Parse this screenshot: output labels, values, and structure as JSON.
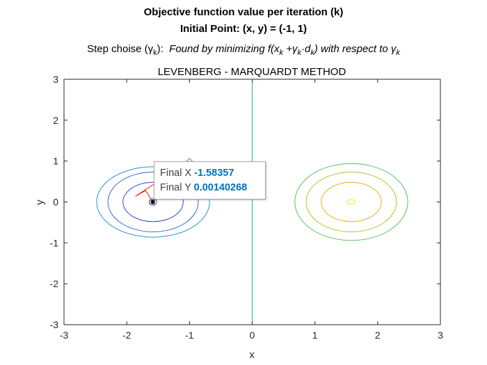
{
  "titles": {
    "line1": "Objective function value per iteration (k)",
    "line2": "Initial Point: (x, y) = (-1, 1)",
    "line3_prefix": "Step choise (",
    "gamma": "γ",
    "sub_k": "k",
    "line3_mid": "):  ",
    "line3_italic_a": "Found by minimizing f(x",
    "line3_italic_b": " +",
    "dot": "·",
    "d": "d",
    "line3_italic_c": ") with respect to "
  },
  "chart_data": {
    "type": "line",
    "title": "LEVENBERG - MARQUARDT METHOD",
    "xlabel": "x",
    "ylabel": "y",
    "xlim": [
      -3,
      3
    ],
    "ylim": [
      -3,
      3
    ],
    "xticks": [
      "-3",
      "-2",
      "-1",
      "0",
      "1",
      "2",
      "3"
    ],
    "yticks": [
      "-3",
      "-2",
      "-1",
      "0",
      "1",
      "2",
      "3"
    ],
    "grid": false,
    "zero_line": {
      "x": 0,
      "color": "#20b2aa"
    },
    "contours": [
      {
        "center": [
          -1.58,
          0
        ],
        "rx": 0.06,
        "ry": 0.06,
        "color": "#3d26a8"
      },
      {
        "center": [
          -1.58,
          0
        ],
        "rx": 0.48,
        "ry": 0.48,
        "color": "#3344d8"
      },
      {
        "center": [
          -1.58,
          0
        ],
        "rx": 0.72,
        "ry": 0.73,
        "color": "#2a6be0"
      },
      {
        "center": [
          -1.58,
          0
        ],
        "rx": 0.9,
        "ry": 0.86,
        "color": "#1e98d8"
      },
      {
        "center": [
          1.58,
          0
        ],
        "rx": 0.06,
        "ry": 0.06,
        "color": "#f9e020"
      },
      {
        "center": [
          1.58,
          0
        ],
        "rx": 0.48,
        "ry": 0.48,
        "color": "#d7b81c"
      },
      {
        "center": [
          1.58,
          0
        ],
        "rx": 0.72,
        "ry": 0.73,
        "color": "#b5c224"
      },
      {
        "center": [
          1.58,
          0
        ],
        "rx": 0.9,
        "ry": 0.94,
        "color": "#5cc05e"
      }
    ],
    "path": {
      "color": "#e8120f",
      "points": [
        [
          -1,
          1
        ],
        [
          -1.86,
          0.14
        ],
        [
          -1.7,
          0.28
        ],
        [
          -1.58357,
          0.00140268
        ]
      ]
    },
    "start_marker": [
      -1,
      1
    ],
    "final_point": {
      "x": -1.58357,
      "y": 0.00140268
    },
    "datatip": {
      "x_label": "Final X",
      "x_value": "-1.58357",
      "y_label": "Final Y",
      "y_value": "0.00140268"
    }
  }
}
